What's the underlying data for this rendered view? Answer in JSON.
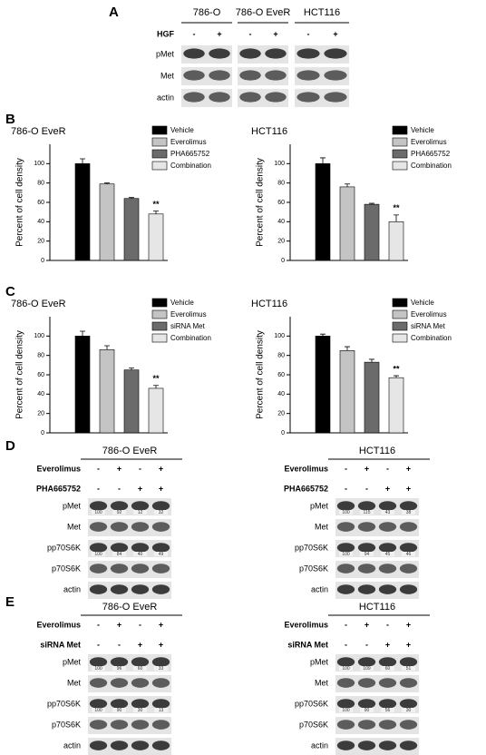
{
  "panel_a": {
    "letter": "A",
    "cell_lines": [
      "786-O",
      "786-O EveR",
      "HCT116"
    ],
    "treatment": "HGF",
    "signs": [
      "-",
      "+",
      "-",
      "+",
      "-",
      "+"
    ],
    "rows": [
      "pMet",
      "Met",
      "actin"
    ]
  },
  "panel_b": {
    "letter": "B"
  },
  "panel_c": {
    "letter": "C"
  },
  "chart_data": [
    {
      "type": "bar",
      "title": "786-O EveR",
      "y_label": "Percent of cell density",
      "categories": [
        null
      ],
      "ylim": [
        0,
        120
      ],
      "yticks": [
        0,
        20,
        40,
        60,
        80,
        100
      ],
      "annotation": "**",
      "series": [
        {
          "name": "Vehicle",
          "color": "#000000",
          "values": [
            100
          ],
          "errors": [
            5
          ]
        },
        {
          "name": "Everolimus",
          "color": "#c4c4c4",
          "values": [
            79
          ],
          "errors": [
            1
          ]
        },
        {
          "name": "PHA665752",
          "color": "#6b6b6b",
          "values": [
            64
          ],
          "errors": [
            1
          ]
        },
        {
          "name": "Combination",
          "color": "#e6e6e6",
          "values": [
            48
          ],
          "errors": [
            3
          ]
        }
      ]
    },
    {
      "type": "bar",
      "title": "HCT116",
      "y_label": "Percent of cell density",
      "categories": [
        null
      ],
      "ylim": [
        0,
        120
      ],
      "yticks": [
        0,
        20,
        40,
        60,
        80,
        100
      ],
      "annotation": "**",
      "series": [
        {
          "name": "Vehicle",
          "color": "#000000",
          "values": [
            100
          ],
          "errors": [
            6
          ]
        },
        {
          "name": "Everolimus",
          "color": "#c4c4c4",
          "values": [
            76
          ],
          "errors": [
            3
          ]
        },
        {
          "name": "PHA665752",
          "color": "#6b6b6b",
          "values": [
            58
          ],
          "errors": [
            1
          ]
        },
        {
          "name": "Combination",
          "color": "#e6e6e6",
          "values": [
            40
          ],
          "errors": [
            7
          ]
        }
      ]
    },
    {
      "type": "bar",
      "title": "786-O EveR",
      "y_label": "Percent of cell density",
      "categories": [
        null
      ],
      "ylim": [
        0,
        120
      ],
      "yticks": [
        0,
        20,
        40,
        60,
        80,
        100
      ],
      "annotation": "**",
      "series": [
        {
          "name": "Vehicle",
          "color": "#000000",
          "values": [
            100
          ],
          "errors": [
            5
          ]
        },
        {
          "name": "Everolimus",
          "color": "#c4c4c4",
          "values": [
            86
          ],
          "errors": [
            4
          ]
        },
        {
          "name": "siRNA Met",
          "color": "#6b6b6b",
          "values": [
            65
          ],
          "errors": [
            2
          ]
        },
        {
          "name": "Combination",
          "color": "#e6e6e6",
          "values": [
            46
          ],
          "errors": [
            3
          ]
        }
      ]
    },
    {
      "type": "bar",
      "title": "HCT116",
      "y_label": "Percent of cell density",
      "categories": [
        null
      ],
      "ylim": [
        0,
        120
      ],
      "yticks": [
        0,
        20,
        40,
        60,
        80,
        100
      ],
      "annotation": "**",
      "series": [
        {
          "name": "Vehicle",
          "color": "#000000",
          "values": [
            100
          ],
          "errors": [
            2
          ]
        },
        {
          "name": "Everolimus",
          "color": "#c4c4c4",
          "values": [
            85
          ],
          "errors": [
            4
          ]
        },
        {
          "name": "siRNA Met",
          "color": "#6b6b6b",
          "values": [
            73
          ],
          "errors": [
            3
          ]
        },
        {
          "name": "Combination",
          "color": "#e6e6e6",
          "values": [
            57
          ],
          "errors": [
            2
          ]
        }
      ]
    }
  ],
  "panel_d": {
    "letter": "D",
    "blots": [
      {
        "cell_line": "786-O EveR",
        "treatments": [
          {
            "name": "Everolimus",
            "signs": [
              "-",
              "+",
              "-",
              "+"
            ]
          },
          {
            "name": "PHA665752",
            "signs": [
              "-",
              "-",
              "+",
              "+"
            ]
          }
        ],
        "rows": [
          {
            "label": "pMet",
            "quant": [
              "100",
              "92",
              "12",
              "32"
            ]
          },
          {
            "label": "Met"
          },
          {
            "label": "pp70S6K",
            "quant": [
              "100",
              "84",
              "40",
              "49"
            ]
          },
          {
            "label": "p70S6K"
          },
          {
            "label": "actin"
          }
        ]
      },
      {
        "cell_line": "HCT116",
        "treatments": [
          {
            "name": "Everolimus",
            "signs": [
              "-",
              "+",
              "-",
              "+"
            ]
          },
          {
            "name": "PHA665752",
            "signs": [
              "-",
              "-",
              "+",
              "+"
            ]
          }
        ],
        "rows": [
          {
            "label": "pMet",
            "quant": [
              "100",
              "115",
              "43",
              "38"
            ]
          },
          {
            "label": "Met"
          },
          {
            "label": "pp70S6K",
            "quant": [
              "100",
              "94",
              "45",
              "46"
            ]
          },
          {
            "label": "p70S6K"
          },
          {
            "label": "actin"
          }
        ]
      }
    ]
  },
  "panel_e": {
    "letter": "E",
    "blots": [
      {
        "cell_line": "786-O EveR",
        "treatments": [
          {
            "name": "Everolimus",
            "signs": [
              "-",
              "+",
              "-",
              "+"
            ]
          },
          {
            "name": "siRNA Met",
            "signs": [
              "-",
              "-",
              "+",
              "+"
            ]
          }
        ],
        "rows": [
          {
            "label": "pMet",
            "quant": [
              "100",
              "96",
              "60",
              "33"
            ]
          },
          {
            "label": "Met"
          },
          {
            "label": "pp70S6K",
            "quant": [
              "100",
              "90",
              "30",
              "13"
            ]
          },
          {
            "label": "p70S6K"
          },
          {
            "label": "actin"
          }
        ]
      },
      {
        "cell_line": "HCT116",
        "treatments": [
          {
            "name": "Everolimus",
            "signs": [
              "-",
              "+",
              "-",
              "+"
            ]
          },
          {
            "name": "siRNA Met",
            "signs": [
              "-",
              "-",
              "+",
              "+"
            ]
          }
        ],
        "rows": [
          {
            "label": "pMet",
            "quant": [
              "100",
              "109",
              "60",
              "51"
            ]
          },
          {
            "label": "Met"
          },
          {
            "label": "pp70S6K",
            "quant": [
              "100",
              "90",
              "56",
              "30"
            ]
          },
          {
            "label": "p70S6K"
          },
          {
            "label": "actin"
          }
        ]
      }
    ]
  }
}
